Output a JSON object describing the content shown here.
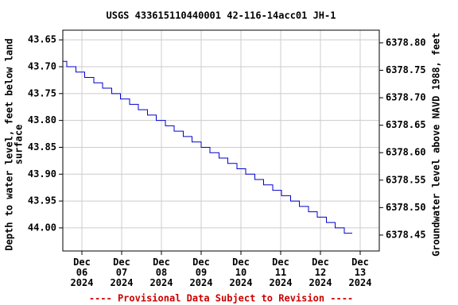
{
  "chart_data": {
    "type": "line",
    "title": "USGS 433615110440001 42-116-14acc01 JH-1",
    "ylabel": [
      "Depth to water level, feet below land",
      "surface"
    ],
    "y2label": "Groundwater level above NAVD 1988, feet",
    "footer": "---- Provisional Data Subject to Revision ----",
    "xlim": [
      5.52,
      13.48
    ],
    "xticks": [
      {
        "value": 6,
        "label": "Dec\n06\n2024"
      },
      {
        "value": 7,
        "label": "Dec\n07\n2024"
      },
      {
        "value": 8,
        "label": "Dec\n08\n2024"
      },
      {
        "value": 9,
        "label": "Dec\n09\n2024"
      },
      {
        "value": 10,
        "label": "Dec\n10\n2024"
      },
      {
        "value": 11,
        "label": "Dec\n11\n2024"
      },
      {
        "value": 12,
        "label": "Dec\n12\n2024"
      },
      {
        "value": 13,
        "label": "Dec\n13\n2024"
      }
    ],
    "ylim": [
      43.632,
      44.043
    ],
    "yinverted": true,
    "yticks": [
      43.65,
      {
        "value": 43.7,
        "label": "43.70"
      },
      43.75,
      {
        "value": 43.8,
        "label": "43.80"
      },
      43.85,
      {
        "value": 43.9,
        "label": "43.90"
      },
      43.95,
      {
        "value": 44.0,
        "label": "44.00"
      }
    ],
    "y2lim": [
      6378.421,
      6378.823
    ],
    "y2ticks": [
      {
        "value": 6378.8,
        "label": "6378.80"
      },
      6378.75,
      {
        "value": 6378.7,
        "label": "6378.70"
      },
      6378.65,
      {
        "value": 6378.6,
        "label": "6378.60"
      },
      6378.55,
      {
        "value": 6378.5,
        "label": "6378.50"
      },
      6378.45
    ],
    "grid": true,
    "step": true,
    "x": [
      5.52,
      5.62,
      5.85,
      6.07,
      6.3,
      6.52,
      6.75,
      6.97,
      7.2,
      7.42,
      7.65,
      7.87,
      8.1,
      8.32,
      8.55,
      8.77,
      9.0,
      9.22,
      9.45,
      9.67,
      9.9,
      10.12,
      10.35,
      10.57,
      10.8,
      11.02,
      11.25,
      11.47,
      11.7,
      11.92,
      12.15,
      12.37,
      12.6,
      12.8
    ],
    "series": [
      {
        "color": "#0000cc",
        "values": [
          43.69,
          43.7,
          43.71,
          43.72,
          43.73,
          43.74,
          43.75,
          43.76,
          43.77,
          43.78,
          43.79,
          43.8,
          43.81,
          43.82,
          43.83,
          43.84,
          43.85,
          43.86,
          43.87,
          43.88,
          43.89,
          43.9,
          43.91,
          43.92,
          43.93,
          43.94,
          43.95,
          43.96,
          43.97,
          43.98,
          43.99,
          44.0,
          44.01,
          44.01
        ]
      }
    ]
  }
}
